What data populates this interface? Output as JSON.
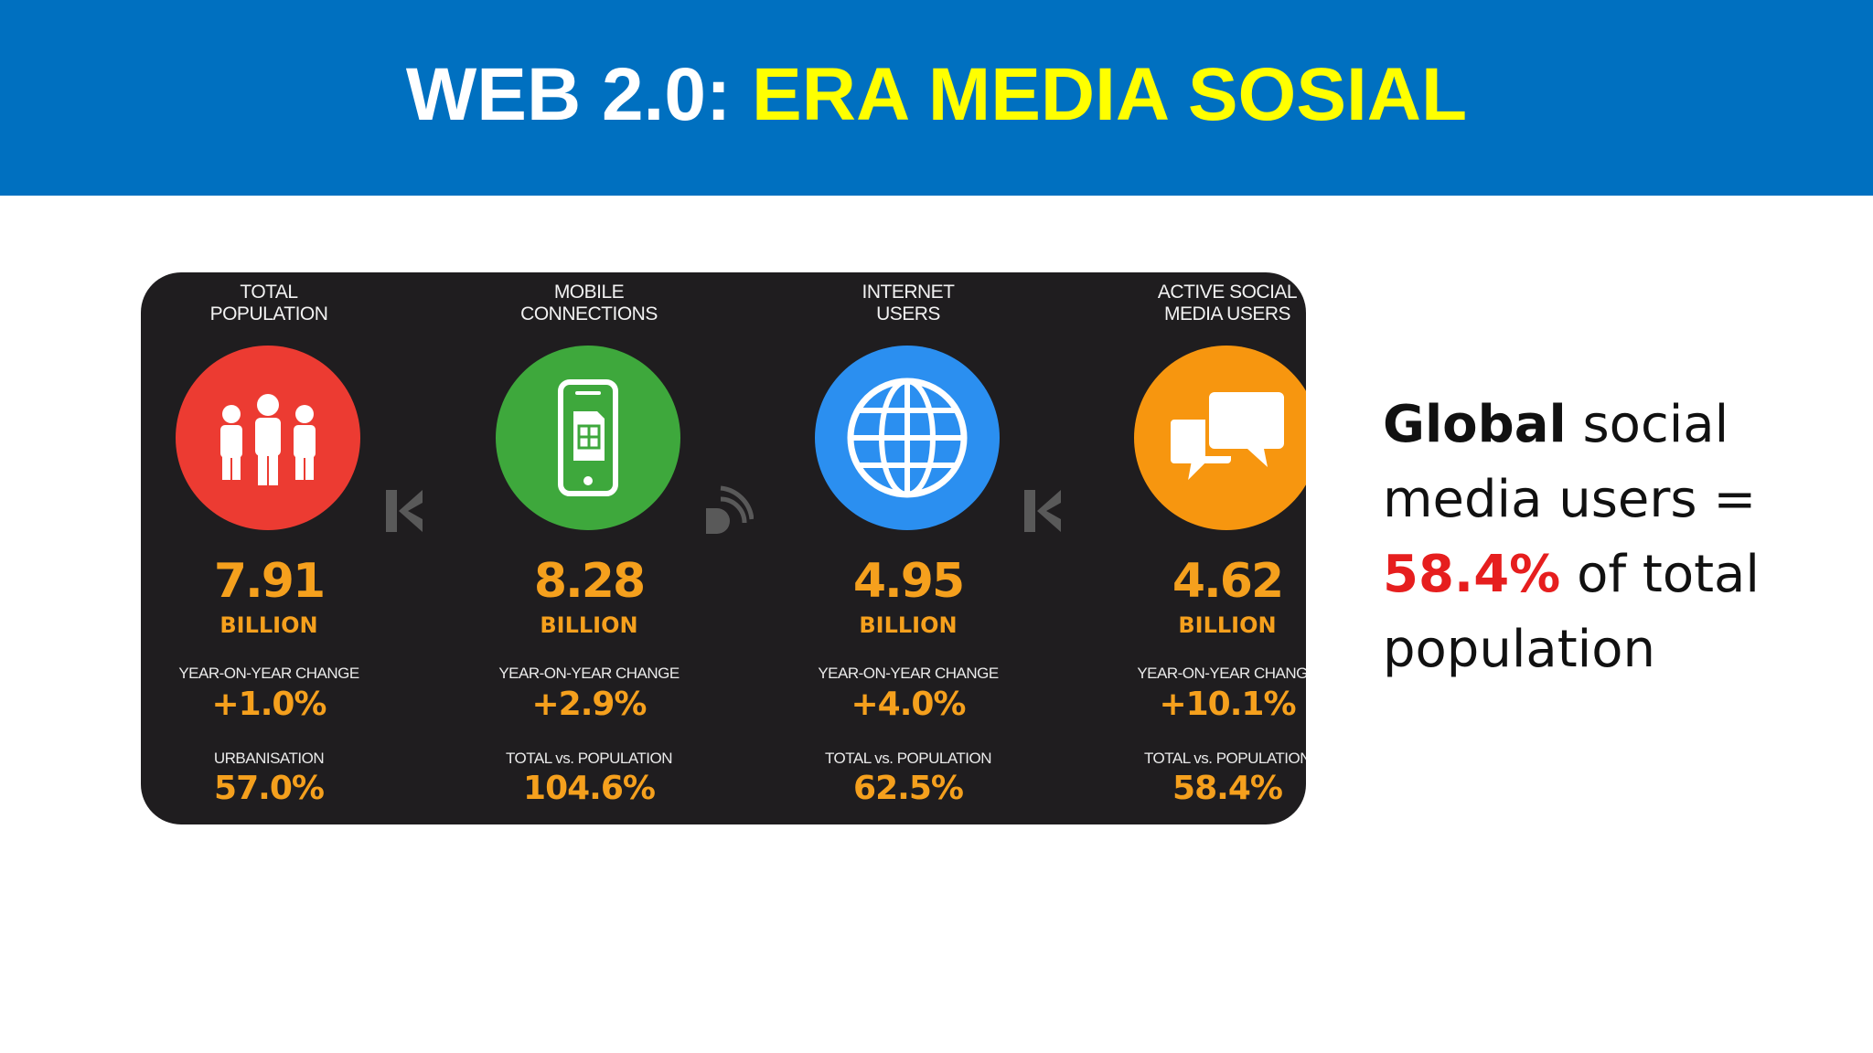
{
  "header": {
    "title_prefix": "WEB 2.0: ",
    "title_accent": "ERA MEDIA SOSIAL"
  },
  "colors": {
    "header_bg": "#0070c0",
    "title_accent": "#ffff00",
    "panel_bg": "#1f1d1f",
    "value_orange": "#f5a01d",
    "highlight_red": "#e61e1e"
  },
  "stats": [
    {
      "heading_line1": "TOTAL",
      "heading_line2": "POPULATION",
      "icon": "people-icon",
      "circle_color": "#ec3b32",
      "value": "7.91",
      "unit": "BILLION",
      "label1": "YEAR-ON-YEAR CHANGE",
      "value1": "+1.0%",
      "label2": "URBANISATION",
      "value2": "57.0%"
    },
    {
      "heading_line1": "MOBILE",
      "heading_line2": "CONNECTIONS",
      "icon": "mobile-phone-icon",
      "circle_color": "#3ea83c",
      "value": "8.28",
      "unit": "BILLION",
      "label1": "YEAR-ON-YEAR CHANGE",
      "value1": "+2.9%",
      "label2": "TOTAL vs. POPULATION",
      "value2": "104.6%"
    },
    {
      "heading_line1": "INTERNET",
      "heading_line2": "USERS",
      "icon": "globe-icon",
      "circle_color": "#2b8ff0",
      "value": "4.95",
      "unit": "BILLION",
      "label1": "YEAR-ON-YEAR CHANGE",
      "value1": "+4.0%",
      "label2": "TOTAL vs. POPULATION",
      "value2": "62.5%"
    },
    {
      "heading_line1": "ACTIVE SOCIAL",
      "heading_line2": "MEDIA USERS",
      "icon": "chat-bubbles-icon",
      "circle_color": "#f7960f",
      "value": "4.62",
      "unit": "BILLION",
      "label1": "YEAR-ON-YEAR CHANGE",
      "value1": "+10.1%",
      "label2": "TOTAL vs. POPULATION",
      "value2": "58.4%"
    }
  ],
  "side_text": {
    "bold_word": "Global",
    "part1": " social media users = ",
    "highlight": "58.4%",
    "part2": " of total population"
  }
}
